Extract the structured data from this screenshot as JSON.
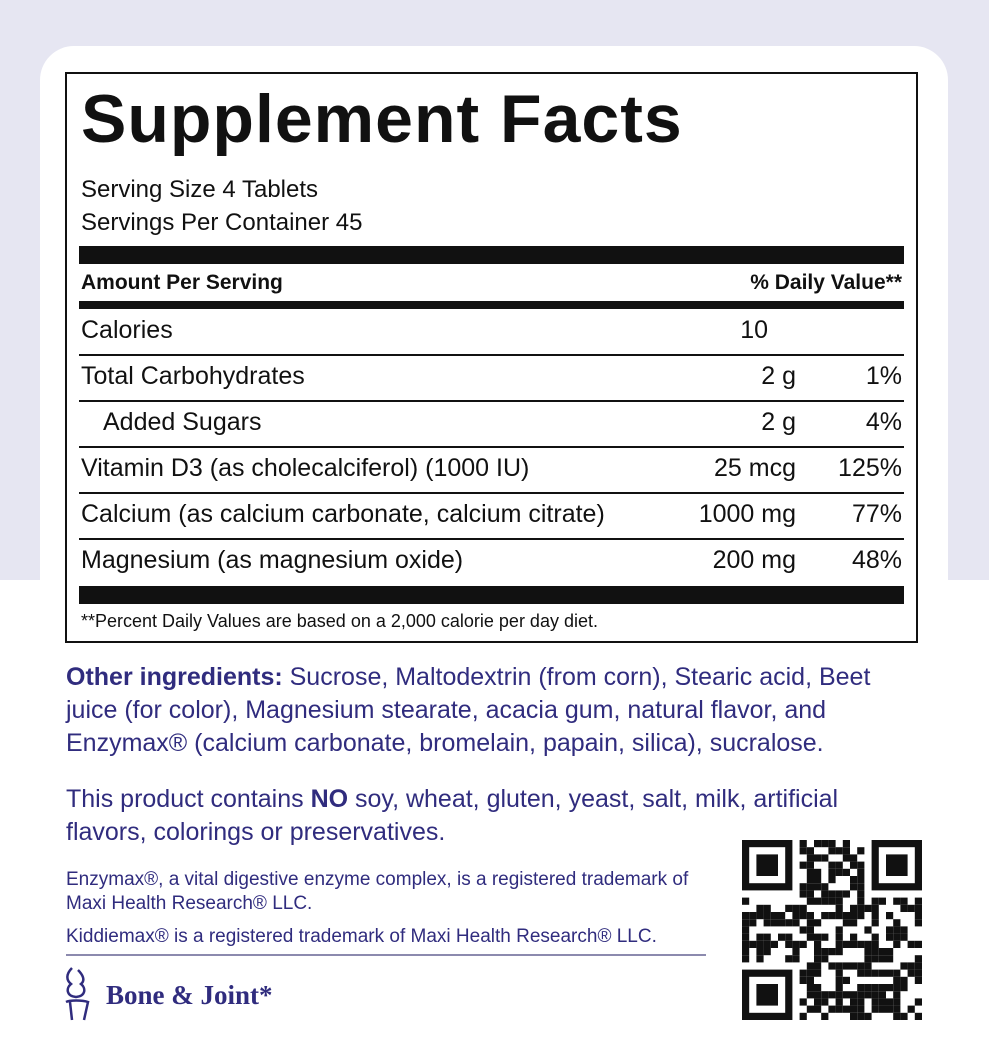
{
  "facts": {
    "title": "Supplement Facts",
    "serving_size": "Serving Size 4 Tablets",
    "servings_per_container": "Servings Per Container 45",
    "header_amount": "Amount Per Serving",
    "header_dv": "% Daily Value**",
    "rows": [
      {
        "name": "Calories",
        "amount": "10",
        "dv": ""
      },
      {
        "name": "Total Carbohydrates",
        "amount": "2 g",
        "dv": "1%"
      },
      {
        "name": "Added Sugars",
        "amount": "2 g",
        "dv": "4%"
      },
      {
        "name": "Vitamin D3 (as cholecalciferol) (1000 IU)",
        "amount": "25 mcg",
        "dv": "125%"
      },
      {
        "name": "Calcium (as calcium carbonate, calcium citrate)",
        "amount": "1000 mg",
        "dv": "77%"
      },
      {
        "name": "Magnesium (as magnesium oxide)",
        "amount": "200 mg",
        "dv": "48%"
      }
    ],
    "footnote": "**Percent Daily Values are based on a 2,000 calorie per day diet."
  },
  "other": {
    "label": "Other ingredients:",
    "text": " Sucrose, Maltodextrin (from corn), Stearic acid, Beet juice (for color), Magnesium stearate, acacia gum, natural flavor, and Enzymax® (calcium carbonate, bromelain, papain, silica), sucralose."
  },
  "contains": {
    "pre": "This product contains ",
    "no": "NO",
    "post": " soy, wheat, gluten, yeast, salt, milk, artificial flavors, colorings or preservatives."
  },
  "trademark1": "Enzymax®, a vital digestive enzyme complex, is a registered trademark of Maxi Health Research® LLC.",
  "trademark2": "Kiddiemax® is a registered trademark of Maxi Health Research® LLC.",
  "brand": "Bone & Joint*",
  "colors": {
    "navy": "#302c7e",
    "background": "#e6e6f2"
  },
  "icons": [
    "joint-icon",
    "qr-code"
  ]
}
